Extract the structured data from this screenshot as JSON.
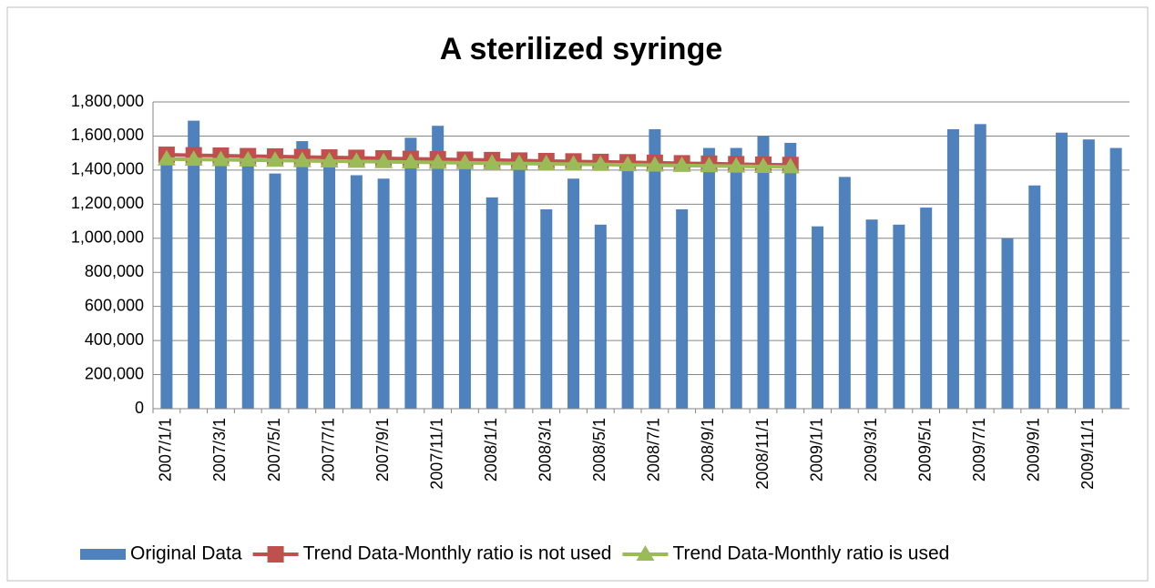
{
  "chart_data": {
    "type": "bar",
    "title": "A sterilized syringe",
    "categories": [
      "2007/1/1",
      null,
      "2007/3/1",
      null,
      "2007/5/1",
      null,
      "2007/7/1",
      null,
      "2007/9/1",
      null,
      "2007/11/1",
      null,
      "2008/1/1",
      null,
      "2008/3/1",
      null,
      "2008/5/1",
      null,
      "2008/7/1",
      null,
      "2008/9/1",
      null,
      "2008/11/1",
      null,
      "2009/1/1",
      null,
      "2009/3/1",
      null,
      "2009/5/1",
      null,
      "2009/7/1",
      null,
      "2009/9/1",
      null,
      "2009/11/1",
      null
    ],
    "series": [
      {
        "name": "Original Data",
        "type": "bar",
        "color": "#4f81bd",
        "values": [
          1450000,
          1690000,
          1470000,
          1480000,
          1380000,
          1570000,
          1440000,
          1370000,
          1350000,
          1590000,
          1660000,
          1500000,
          1240000,
          1420000,
          1170000,
          1350000,
          1080000,
          1440000,
          1640000,
          1170000,
          1530000,
          1530000,
          1600000,
          1560000,
          1070000,
          1360000,
          1110000,
          1080000,
          1180000,
          1640000,
          1670000,
          1000000,
          1310000,
          1620000,
          1580000,
          1530000
        ]
      },
      {
        "name": "Trend Data-Monthly ratio is not used",
        "type": "line",
        "marker": "square",
        "color": "#c0504d",
        "values": [
          1490000,
          1487000,
          1485000,
          1482000,
          1480000,
          1477000,
          1474000,
          1472000,
          1469000,
          1466000,
          1464000,
          1461000,
          1459000,
          1456000,
          1453000,
          1451000,
          1448000,
          1446000,
          1443000,
          1440000,
          1438000,
          1435000,
          1432000,
          1430000,
          null,
          null,
          null,
          null,
          null,
          null,
          null,
          null,
          null,
          null,
          null,
          null
        ]
      },
      {
        "name": "Trend Data-Monthly ratio is used",
        "type": "line",
        "marker": "triangle",
        "color": "#9bbb59",
        "values": [
          1465000,
          1463000,
          1461000,
          1459000,
          1457000,
          1455000,
          1453000,
          1451000,
          1449000,
          1447000,
          1445000,
          1443000,
          1441000,
          1439000,
          1437000,
          1435000,
          1433000,
          1431000,
          1429000,
          1427000,
          1425000,
          1423000,
          1421000,
          1419000,
          null,
          null,
          null,
          null,
          null,
          null,
          null,
          null,
          null,
          null,
          null,
          null
        ]
      }
    ],
    "ylim": [
      0,
      1800000
    ],
    "yticks": [
      0,
      {
        "value": 200000,
        "label": "200,000"
      },
      {
        "value": 400000,
        "label": "400,000"
      },
      {
        "value": 600000,
        "label": "600,000"
      },
      {
        "value": 800000,
        "label": "800,000"
      },
      {
        "value": 1000000,
        "label": "1,000,000"
      },
      {
        "value": 1200000,
        "label": "1,200,000"
      },
      {
        "value": 1400000,
        "label": "1,400,000"
      },
      {
        "value": 1600000,
        "label": "1,600,000"
      },
      {
        "value": 1800000,
        "label": "1,800,000"
      }
    ],
    "grid": true,
    "legend": "bottom"
  }
}
